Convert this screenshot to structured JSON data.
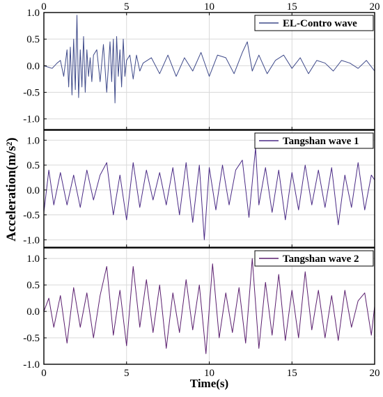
{
  "colors": {
    "series_1": "#3f4a8a",
    "series_2": "#4a2a85",
    "series_3": "#5a1e6e",
    "axis": "#000000",
    "grid": "#d9d9d9"
  },
  "chart_data": {
    "type": "line",
    "ylabel": "Acceleration(m/s²)",
    "xlabel": "Time(s)",
    "grid": true,
    "legend_placement": "top-right",
    "xlim": [
      0,
      20
    ],
    "x_ticks": [
      "0",
      "5",
      "10",
      "15",
      "20"
    ],
    "x_tick_values": [
      0,
      5,
      10,
      15,
      20
    ],
    "top_x_ticks": [
      "0",
      "5",
      "10",
      "15",
      "20"
    ],
    "panels": [
      {
        "legend": "EL-Contro wave",
        "ylim": [
          -1.2,
          1.0
        ],
        "y_ticks": [
          "1.0",
          "0.5",
          "0.0",
          "-0.5",
          "-1.0"
        ],
        "y_tick_values": [
          1.0,
          0.5,
          0.0,
          -0.5,
          -1.0
        ],
        "series": {
          "name": "EL-Contro wave",
          "x": [
            0,
            0.5,
            0.8,
            1.0,
            1.2,
            1.4,
            1.5,
            1.6,
            1.7,
            1.8,
            1.9,
            2.0,
            2.1,
            2.2,
            2.3,
            2.4,
            2.5,
            2.6,
            2.7,
            2.8,
            2.9,
            3.0,
            3.2,
            3.4,
            3.6,
            3.8,
            4.0,
            4.1,
            4.2,
            4.3,
            4.4,
            4.5,
            4.6,
            4.7,
            4.8,
            4.9,
            5.0,
            5.2,
            5.4,
            5.6,
            5.8,
            6.0,
            6.5,
            7.0,
            7.5,
            8.0,
            8.5,
            9.0,
            9.5,
            10.0,
            10.5,
            11.0,
            11.5,
            12.0,
            12.3,
            12.6,
            13.0,
            13.5,
            14.0,
            14.5,
            15.0,
            15.5,
            16.0,
            16.5,
            17.0,
            17.5,
            18.0,
            18.5,
            19.0,
            19.5,
            20.0
          ],
          "y": [
            0.0,
            -0.05,
            0.05,
            0.1,
            -0.2,
            0.3,
            -0.4,
            0.35,
            -0.55,
            0.5,
            -0.45,
            0.95,
            -0.6,
            0.3,
            -0.4,
            0.55,
            -0.5,
            0.3,
            -0.2,
            0.15,
            -0.3,
            0.2,
            0.3,
            -0.3,
            0.4,
            -0.5,
            0.45,
            -0.3,
            0.5,
            -0.7,
            0.55,
            -0.2,
            0.3,
            -0.4,
            0.5,
            -0.2,
            0.1,
            0.2,
            -0.25,
            0.2,
            -0.1,
            0.05,
            0.15,
            -0.15,
            0.2,
            -0.2,
            0.15,
            -0.1,
            0.25,
            -0.2,
            0.2,
            0.15,
            -0.15,
            0.25,
            0.45,
            -0.1,
            0.2,
            -0.15,
            0.1,
            0.2,
            -0.05,
            0.15,
            -0.15,
            0.1,
            0.05,
            -0.1,
            0.1,
            0.05,
            -0.05,
            0.1,
            -0.1
          ]
        }
      },
      {
        "legend": "Tangshan wave 1",
        "ylim": [
          -1.15,
          1.2
        ],
        "y_ticks": [
          "1.0",
          "0.5",
          "0.0",
          "-0.5",
          "-1.0"
        ],
        "y_tick_values": [
          1.0,
          0.5,
          0.0,
          -0.5,
          -1.0
        ],
        "series": {
          "name": "Tangshan wave 1",
          "x": [
            0,
            0.3,
            0.6,
            1.0,
            1.4,
            1.8,
            2.2,
            2.6,
            3.0,
            3.4,
            3.8,
            4.2,
            4.6,
            5.0,
            5.4,
            5.8,
            6.2,
            6.6,
            7.0,
            7.4,
            7.8,
            8.2,
            8.6,
            9.0,
            9.4,
            9.7,
            10.0,
            10.4,
            10.8,
            11.2,
            11.6,
            12.0,
            12.4,
            12.8,
            13.0,
            13.4,
            13.8,
            14.2,
            14.6,
            15.0,
            15.4,
            15.8,
            16.2,
            16.6,
            17.0,
            17.4,
            17.8,
            18.2,
            18.6,
            19.0,
            19.4,
            19.8,
            20.0
          ],
          "y": [
            -0.45,
            0.4,
            -0.3,
            0.35,
            -0.3,
            0.3,
            -0.35,
            0.4,
            -0.2,
            0.3,
            0.55,
            -0.5,
            0.3,
            -0.6,
            0.55,
            -0.35,
            0.4,
            -0.2,
            0.35,
            -0.3,
            0.45,
            -0.5,
            0.55,
            -0.65,
            0.5,
            -1.0,
            0.45,
            -0.4,
            0.5,
            -0.3,
            0.4,
            0.6,
            -0.55,
            0.85,
            -0.3,
            0.45,
            -0.45,
            0.4,
            -0.6,
            0.35,
            -0.4,
            0.5,
            -0.3,
            0.4,
            -0.35,
            0.45,
            -0.7,
            0.3,
            -0.35,
            0.55,
            -0.4,
            0.3,
            0.2
          ]
        }
      },
      {
        "legend": "Tangshan wave 2",
        "ylim": [
          -1.0,
          1.2
        ],
        "y_ticks": [
          "1.0",
          "0.5",
          "0.0",
          "-0.5",
          "-1.0"
        ],
        "y_tick_values": [
          1.0,
          0.5,
          0.0,
          -0.5,
          -1.0
        ],
        "series": {
          "name": "Tangshan wave 2",
          "x": [
            0,
            0.3,
            0.6,
            1.0,
            1.4,
            1.8,
            2.2,
            2.6,
            3.0,
            3.4,
            3.8,
            4.2,
            4.6,
            5.0,
            5.4,
            5.8,
            6.2,
            6.6,
            7.0,
            7.4,
            7.8,
            8.2,
            8.6,
            9.0,
            9.4,
            9.8,
            10.2,
            10.6,
            11.0,
            11.4,
            11.8,
            12.2,
            12.6,
            13.0,
            13.4,
            13.8,
            14.2,
            14.6,
            15.0,
            15.4,
            15.8,
            16.2,
            16.6,
            17.0,
            17.4,
            17.8,
            18.2,
            18.6,
            19.0,
            19.4,
            19.8,
            20.0
          ],
          "y": [
            0.0,
            0.25,
            -0.3,
            0.3,
            -0.6,
            0.45,
            -0.3,
            0.35,
            -0.5,
            0.3,
            0.85,
            -0.45,
            0.4,
            -0.65,
            0.85,
            -0.3,
            0.6,
            -0.4,
            0.5,
            -0.7,
            0.35,
            -0.4,
            0.6,
            -0.35,
            0.5,
            -0.8,
            0.9,
            -0.5,
            0.35,
            -0.4,
            0.45,
            -0.6,
            1.0,
            -0.7,
            0.55,
            -0.45,
            0.7,
            -0.55,
            0.4,
            -0.5,
            0.75,
            -0.35,
            0.4,
            -0.5,
            0.3,
            -0.55,
            0.4,
            -0.3,
            0.2,
            0.35,
            -0.45,
            0.1
          ]
        }
      }
    ]
  }
}
